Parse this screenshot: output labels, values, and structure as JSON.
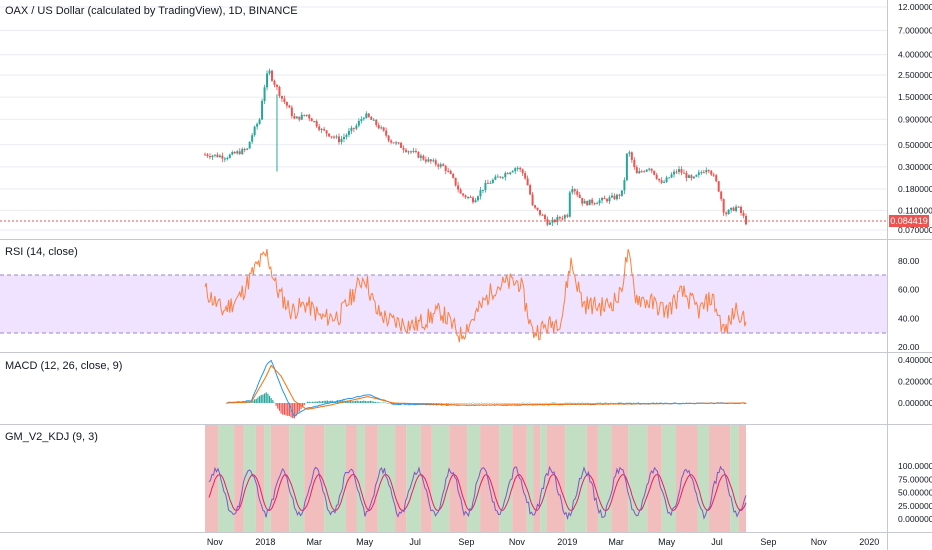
{
  "header": {
    "main_title": "OAX / US Dollar (calculated by TradingView), 1D, BINANCE",
    "rsi_title": "RSI (14, close)",
    "macd_title": "MACD (12, 26, close, 9)",
    "kdj_title": "GM_V2_KDJ (9, 3)",
    "last_price": "0.084419"
  },
  "colors": {
    "up": "#26a69a",
    "down": "#ef5350",
    "rsi_line": "#ff7f3f",
    "rsi_band": "#ead9ff",
    "macd_line": "#2196f3",
    "signal_line": "#ff6d00",
    "k_line": "#7e57c2",
    "d_line": "#e91e63",
    "bg_green": "#b9d9b9",
    "bg_red": "#f0b2b2",
    "grid": "#e9ebf0",
    "axis_text": "#131722"
  },
  "chart_data": [
    {
      "type": "candlestick",
      "title": "OAX / US Dollar (calculated by TradingView), 1D, BINANCE",
      "scale": "log",
      "y_ticks": [
        "12.000000",
        "7.000000",
        "4.000000",
        "2.500000",
        "1.500000",
        "0.900000",
        "0.500000",
        "0.300000",
        "0.180000",
        "0.110000",
        "0.070000"
      ],
      "y_tick_values": [
        12,
        7,
        4,
        2.5,
        1.5,
        0.9,
        0.5,
        0.3,
        0.18,
        0.11,
        0.07
      ],
      "x_ticks": [
        "Nov",
        "2018",
        "Mar",
        "May",
        "Jul",
        "Sep",
        "Nov",
        "2019",
        "Mar",
        "May",
        "Jul",
        "Sep",
        "Nov",
        "2020"
      ],
      "last_price": 0.084419,
      "key_points": [
        {
          "date": "2017-10-20",
          "close": 0.4
        },
        {
          "date": "2017-11-15",
          "close": 0.38
        },
        {
          "date": "2017-12-10",
          "close": 0.45
        },
        {
          "date": "2017-12-25",
          "close": 0.9
        },
        {
          "date": "2018-01-05",
          "close": 2.8
        },
        {
          "date": "2018-01-10",
          "close": 2.2
        },
        {
          "date": "2018-01-20",
          "close": 1.5
        },
        {
          "date": "2018-02-05",
          "close": 0.9
        },
        {
          "date": "2018-02-20",
          "close": 1.0
        },
        {
          "date": "2018-03-10",
          "close": 0.7
        },
        {
          "date": "2018-04-01",
          "close": 0.55
        },
        {
          "date": "2018-04-20",
          "close": 0.75
        },
        {
          "date": "2018-05-01",
          "close": 1.0
        },
        {
          "date": "2018-05-15",
          "close": 0.8
        },
        {
          "date": "2018-06-01",
          "close": 0.55
        },
        {
          "date": "2018-06-20",
          "close": 0.45
        },
        {
          "date": "2018-07-15",
          "close": 0.35
        },
        {
          "date": "2018-08-05",
          "close": 0.3
        },
        {
          "date": "2018-08-25",
          "close": 0.16
        },
        {
          "date": "2018-09-10",
          "close": 0.14
        },
        {
          "date": "2018-09-25",
          "close": 0.2
        },
        {
          "date": "2018-10-15",
          "close": 0.25
        },
        {
          "date": "2018-11-01",
          "close": 0.3
        },
        {
          "date": "2018-11-10",
          "close": 0.25
        },
        {
          "date": "2018-11-20",
          "close": 0.12
        },
        {
          "date": "2018-12-10",
          "close": 0.08
        },
        {
          "date": "2018-12-20",
          "close": 0.09
        },
        {
          "date": "2019-01-01",
          "close": 0.1
        },
        {
          "date": "2019-01-05",
          "close": 0.2
        },
        {
          "date": "2019-01-20",
          "close": 0.13
        },
        {
          "date": "2019-02-15",
          "close": 0.14
        },
        {
          "date": "2019-03-01",
          "close": 0.15
        },
        {
          "date": "2019-03-10",
          "close": 0.17
        },
        {
          "date": "2019-03-15",
          "close": 0.45
        },
        {
          "date": "2019-03-25",
          "close": 0.25
        },
        {
          "date": "2019-04-10",
          "close": 0.3
        },
        {
          "date": "2019-04-25",
          "close": 0.2
        },
        {
          "date": "2019-05-15",
          "close": 0.28
        },
        {
          "date": "2019-06-01",
          "close": 0.22
        },
        {
          "date": "2019-06-20",
          "close": 0.3
        },
        {
          "date": "2019-07-01",
          "close": 0.2
        },
        {
          "date": "2019-07-10",
          "close": 0.1
        },
        {
          "date": "2019-07-25",
          "close": 0.12
        },
        {
          "date": "2019-08-05",
          "close": 0.084
        }
      ]
    },
    {
      "type": "line",
      "title": "RSI (14, close)",
      "y_ticks": [
        "80.00",
        "60.00",
        "40.00",
        "20.00"
      ],
      "y_tick_values": [
        80,
        60,
        40,
        20
      ],
      "band": [
        30,
        70
      ],
      "key_points": [
        {
          "date": "2017-10-20",
          "value": 60
        },
        {
          "date": "2017-11-10",
          "value": 45
        },
        {
          "date": "2017-12-01",
          "value": 55
        },
        {
          "date": "2017-12-20",
          "value": 75
        },
        {
          "date": "2018-01-03",
          "value": 85
        },
        {
          "date": "2018-01-15",
          "value": 60
        },
        {
          "date": "2018-02-01",
          "value": 45
        },
        {
          "date": "2018-02-20",
          "value": 50
        },
        {
          "date": "2018-03-10",
          "value": 40
        },
        {
          "date": "2018-04-01",
          "value": 42
        },
        {
          "date": "2018-04-20",
          "value": 60
        },
        {
          "date": "2018-05-01",
          "value": 70
        },
        {
          "date": "2018-05-15",
          "value": 45
        },
        {
          "date": "2018-06-01",
          "value": 38
        },
        {
          "date": "2018-07-01",
          "value": 35
        },
        {
          "date": "2018-08-01",
          "value": 45
        },
        {
          "date": "2018-08-25",
          "value": 28
        },
        {
          "date": "2018-09-15",
          "value": 45
        },
        {
          "date": "2018-10-05",
          "value": 62
        },
        {
          "date": "2018-10-25",
          "value": 65
        },
        {
          "date": "2018-11-05",
          "value": 65
        },
        {
          "date": "2018-11-20",
          "value": 30
        },
        {
          "date": "2018-12-10",
          "value": 35
        },
        {
          "date": "2018-12-25",
          "value": 40
        },
        {
          "date": "2019-01-05",
          "value": 80
        },
        {
          "date": "2019-01-20",
          "value": 50
        },
        {
          "date": "2019-02-15",
          "value": 48
        },
        {
          "date": "2019-03-05",
          "value": 55
        },
        {
          "date": "2019-03-15",
          "value": 85
        },
        {
          "date": "2019-03-25",
          "value": 55
        },
        {
          "date": "2019-04-15",
          "value": 50
        },
        {
          "date": "2019-05-01",
          "value": 45
        },
        {
          "date": "2019-05-20",
          "value": 58
        },
        {
          "date": "2019-06-10",
          "value": 45
        },
        {
          "date": "2019-06-25",
          "value": 55
        },
        {
          "date": "2019-07-10",
          "value": 30
        },
        {
          "date": "2019-07-25",
          "value": 48
        },
        {
          "date": "2019-08-05",
          "value": 35
        }
      ]
    },
    {
      "type": "line",
      "title": "MACD (12, 26, close, 9)",
      "y_ticks": [
        "0.400000",
        "0.200000",
        "0.000000"
      ],
      "y_tick_values": [
        0.4,
        0.2,
        0
      ],
      "series_names": [
        "MACD",
        "Signal",
        "Histogram"
      ],
      "key_points": [
        {
          "date": "2017-11-15",
          "macd": 0.0,
          "signal": 0.0
        },
        {
          "date": "2017-12-15",
          "macd": 0.02,
          "signal": 0.01
        },
        {
          "date": "2018-01-02",
          "macd": 0.35,
          "signal": 0.25
        },
        {
          "date": "2018-01-08",
          "macd": 0.4,
          "signal": 0.35
        },
        {
          "date": "2018-01-20",
          "macd": 0.15,
          "signal": 0.25
        },
        {
          "date": "2018-02-05",
          "macd": -0.12,
          "signal": 0.02
        },
        {
          "date": "2018-02-20",
          "macd": -0.05,
          "signal": -0.06
        },
        {
          "date": "2018-03-20",
          "macd": 0.0,
          "signal": -0.02
        },
        {
          "date": "2018-05-05",
          "macd": 0.08,
          "signal": 0.06
        },
        {
          "date": "2018-06-05",
          "macd": -0.01,
          "signal": 0.0
        },
        {
          "date": "2018-09-01",
          "macd": -0.02,
          "signal": -0.02
        },
        {
          "date": "2019-08-05",
          "macd": 0.0,
          "signal": 0.0
        }
      ]
    },
    {
      "type": "line",
      "title": "GM_V2_KDJ (9, 3)",
      "y_ticks": [
        "100.000000",
        "75.000000",
        "50.000000",
        "25.000000",
        "0.000000"
      ],
      "y_tick_values": [
        100,
        75,
        50,
        25,
        0
      ],
      "series_names": [
        "K",
        "D"
      ],
      "notes": "K and D oscillate between 0 and 100 throughout Oct 2017 – Aug 2019 with alternating green/red background regions"
    }
  ]
}
